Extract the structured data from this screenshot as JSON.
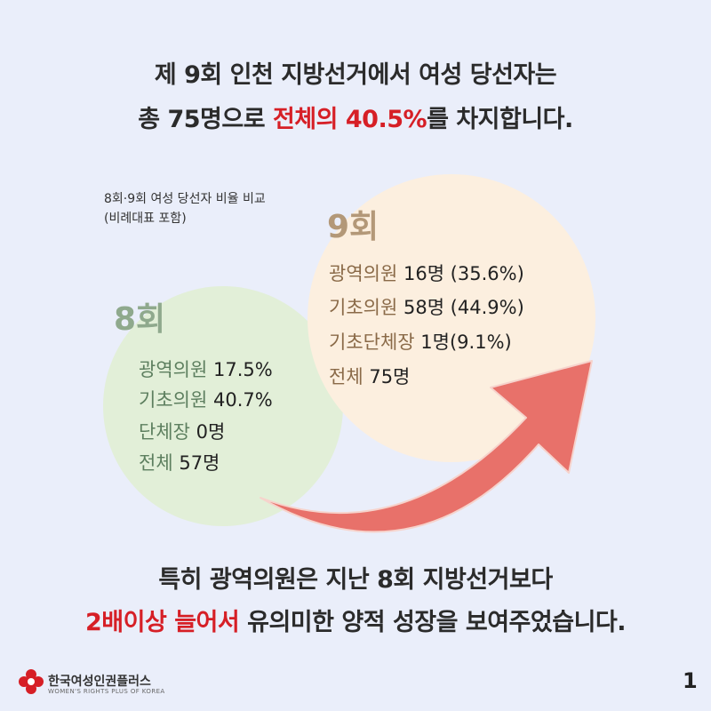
{
  "headline_top": {
    "line1": "제 9회 인천 지방선거에서 여성 당선자는",
    "line2_pre": "총 75명으로 ",
    "line2_highlight": "전체의 40.5%",
    "line2_post": "를 차지합니다."
  },
  "caption": {
    "line1": "8회·9회 여성 당선자 비율 비교",
    "line2": "(비례대표 포함)"
  },
  "round8": {
    "label": "8회",
    "stats": [
      {
        "key": "광역의원",
        "value": "17.5%"
      },
      {
        "key": "기초의원",
        "value": "40.7%"
      },
      {
        "key": "단체장",
        "value": "0명"
      },
      {
        "key": "전체",
        "value": "57명"
      }
    ]
  },
  "round9": {
    "label": "9회",
    "stats": [
      {
        "key": "광역의원",
        "value": "16명 (35.6%)"
      },
      {
        "key": "기초의원",
        "value": "58명 (44.9%)"
      },
      {
        "key": "기초단체장",
        "value": "1명(9.1%)"
      },
      {
        "key": "전체",
        "value": "75명"
      }
    ]
  },
  "headline_bottom": {
    "line1": "특히 광역의원은 지난 8회 지방선거보다",
    "line2_highlight": "2배이상 늘어서",
    "line2_post": " 유의미한 양적 성장을 보여주었습니다."
  },
  "footer": {
    "org_name": "한국여성인권플러스",
    "org_sub": "WOMEN'S RIGHTS PLUS OF KOREA",
    "page_number": "1"
  },
  "colors": {
    "background": "#eaeefa",
    "highlight_red": "#d61f26",
    "circle8": "#e2efd8",
    "circle9": "#fcefdf",
    "arrow": "#e8716a"
  },
  "icons": {
    "logo": "red-flower-logo-icon",
    "arrow": "curved-arrow-icon"
  }
}
